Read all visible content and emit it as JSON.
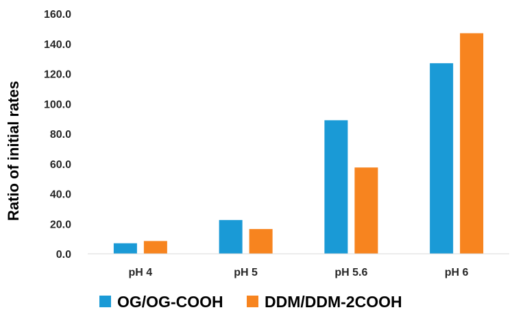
{
  "chart_data": {
    "type": "bar",
    "title": "",
    "xlabel": "",
    "ylabel": "Ratio of initial rates",
    "categories": [
      "pH 4",
      "pH 5",
      "pH 5.6",
      "pH 6"
    ],
    "series": [
      {
        "name": "OG/OG-COOH",
        "color": "#1a9ad6",
        "values": [
          7.0,
          22.5,
          89.0,
          127.0
        ]
      },
      {
        "name": "DDM/DDM-2COOH",
        "color": "#f7841f",
        "values": [
          8.5,
          16.5,
          57.5,
          147.0
        ]
      }
    ],
    "ylim": [
      0,
      160
    ],
    "yticks": [
      "0.0",
      "20.0",
      "40.0",
      "60.0",
      "80.0",
      "100.0",
      "120.0",
      "140.0",
      "160.0"
    ],
    "grid": false,
    "legend_position": "bottom"
  }
}
